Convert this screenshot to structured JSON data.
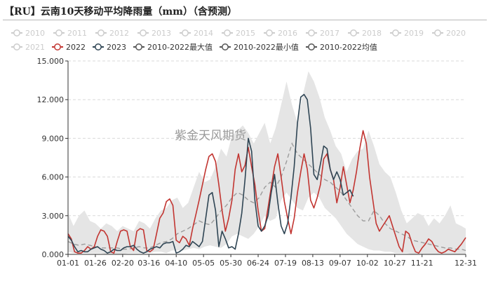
{
  "title": "【RU】云南10天移动平均降雨量（mm）（含预测）",
  "watermark": "紫金天风期货",
  "legend_rows": [
    [
      {
        "label": "2010",
        "state": "off",
        "color": "#cccccc"
      },
      {
        "label": "2011",
        "state": "off",
        "color": "#cccccc"
      },
      {
        "label": "2012",
        "state": "off",
        "color": "#cccccc"
      },
      {
        "label": "2013",
        "state": "off",
        "color": "#cccccc"
      },
      {
        "label": "2014",
        "state": "off",
        "color": "#cccccc"
      },
      {
        "label": "2015",
        "state": "off",
        "color": "#cccccc"
      },
      {
        "label": "2016",
        "state": "off",
        "color": "#cccccc"
      },
      {
        "label": "2017",
        "state": "off",
        "color": "#cccccc"
      },
      {
        "label": "2018",
        "state": "off",
        "color": "#cccccc"
      },
      {
        "label": "2019",
        "state": "off",
        "color": "#cccccc"
      },
      {
        "label": "2020",
        "state": "off",
        "color": "#cccccc"
      }
    ],
    [
      {
        "label": "2021",
        "state": "off",
        "color": "#cccccc"
      },
      {
        "label": "2022",
        "state": "on",
        "color": "#c23531"
      },
      {
        "label": "2023",
        "state": "on",
        "color": "#2f4554"
      },
      {
        "label": "2010-2022最大值",
        "state": "on",
        "color": "#555555"
      },
      {
        "label": "2010-2022最小值",
        "state": "on",
        "color": "#555555"
      },
      {
        "label": "2010-2022均值",
        "state": "on",
        "color": "#555555"
      }
    ]
  ],
  "colors": {
    "series_2022": "#c23531",
    "series_2023": "#2f4554",
    "mean_dashed": "#9c9c9c",
    "range_band": "#e5e5e5",
    "disabled": "#cccccc"
  },
  "chart_data": {
    "type": "line",
    "y_ticks": [
      "0.000",
      "3.000",
      "6.000",
      "9.000",
      "12.000",
      "15.000"
    ],
    "ylim": [
      0,
      15
    ],
    "x_ticks": [
      "01-01",
      "01-26",
      "02-20",
      "03-16",
      "04-10",
      "05-05",
      "05-30",
      "06-24",
      "07-19",
      "08-13",
      "09-07",
      "10-02",
      "10-27",
      "11-21",
      "12-31"
    ],
    "x_tick_days": [
      1,
      26,
      51,
      75,
      100,
      125,
      150,
      175,
      200,
      225,
      250,
      275,
      300,
      325,
      365
    ],
    "xlim": [
      1,
      365
    ],
    "grid": "horizontal-dashed",
    "series": [
      {
        "name": "2010-2022最大值",
        "role": "band-upper",
        "x": [
          1,
          6,
          11,
          16,
          21,
          26,
          31,
          36,
          41,
          46,
          51,
          56,
          61,
          66,
          71,
          76,
          81,
          86,
          91,
          96,
          101,
          106,
          111,
          116,
          121,
          126,
          131,
          136,
          141,
          146,
          151,
          156,
          161,
          166,
          171,
          176,
          181,
          186,
          191,
          196,
          201,
          206,
          211,
          216,
          221,
          226,
          231,
          236,
          241,
          246,
          251,
          256,
          261,
          266,
          271,
          276,
          281,
          286,
          291,
          296,
          301,
          306,
          311,
          316,
          321,
          326,
          331,
          336,
          341,
          346,
          351,
          356,
          361,
          365
        ],
        "values": [
          3.2,
          2.2,
          3.0,
          3.4,
          2.6,
          2.4,
          2.0,
          2.4,
          2.2,
          1.8,
          2.2,
          2.0,
          1.8,
          2.6,
          2.4,
          2.0,
          2.8,
          3.4,
          3.6,
          4.2,
          4.4,
          3.6,
          4.0,
          5.2,
          6.4,
          5.6,
          5.8,
          6.8,
          8.2,
          7.6,
          9.2,
          9.6,
          10.0,
          9.4,
          8.6,
          9.4,
          10.2,
          8.6,
          9.8,
          11.6,
          13.4,
          11.6,
          10.2,
          12.4,
          14.2,
          13.4,
          12.2,
          10.6,
          9.6,
          8.4,
          7.8,
          6.4,
          7.4,
          8.0,
          8.2,
          9.6,
          8.4,
          7.0,
          6.4,
          6.0,
          4.8,
          3.4,
          2.4,
          2.8,
          3.2,
          3.0,
          2.2,
          2.8,
          2.4,
          3.0,
          3.8,
          2.4,
          2.2,
          2.0
        ]
      },
      {
        "name": "2010-2022最小值",
        "role": "band-lower",
        "x": [
          1,
          6,
          11,
          16,
          21,
          26,
          31,
          36,
          41,
          46,
          51,
          56,
          61,
          66,
          71,
          76,
          81,
          86,
          91,
          96,
          101,
          106,
          111,
          116,
          121,
          126,
          131,
          136,
          141,
          146,
          151,
          156,
          161,
          166,
          171,
          176,
          181,
          186,
          191,
          196,
          201,
          206,
          211,
          216,
          221,
          226,
          231,
          236,
          241,
          246,
          251,
          256,
          261,
          266,
          271,
          276,
          281,
          286,
          291,
          296,
          301,
          306,
          311,
          316,
          321,
          326,
          331,
          336,
          341,
          346,
          351,
          356,
          361,
          365
        ],
        "values": [
          0.2,
          0.1,
          0.1,
          0.1,
          0.1,
          0.1,
          0.1,
          0.0,
          0.0,
          0.0,
          0.0,
          0.1,
          0.1,
          0.1,
          0.1,
          0.1,
          0.2,
          0.2,
          0.1,
          0.3,
          0.3,
          0.3,
          0.4,
          0.5,
          0.4,
          0.6,
          0.7,
          0.6,
          0.5,
          0.8,
          1.4,
          1.6,
          1.4,
          1.2,
          1.6,
          2.2,
          3.0,
          2.6,
          2.8,
          4.2,
          4.8,
          4.2,
          3.6,
          3.4,
          4.4,
          4.8,
          4.4,
          3.6,
          3.2,
          2.8,
          2.2,
          1.6,
          1.2,
          0.8,
          0.6,
          0.4,
          0.3,
          0.3,
          0.2,
          0.2,
          0.1,
          0.1,
          0.1,
          0.0,
          0.0,
          0.0,
          0.0,
          0.0,
          0.0,
          0.0,
          0.0,
          0.0,
          0.0,
          0.0
        ]
      },
      {
        "name": "2010-2022均值",
        "role": "mean",
        "x": [
          1,
          6,
          11,
          16,
          21,
          26,
          31,
          36,
          41,
          46,
          51,
          56,
          61,
          66,
          71,
          76,
          81,
          86,
          91,
          96,
          101,
          106,
          111,
          116,
          121,
          126,
          131,
          136,
          141,
          146,
          151,
          156,
          161,
          166,
          171,
          176,
          181,
          186,
          191,
          196,
          201,
          206,
          211,
          216,
          221,
          226,
          231,
          236,
          241,
          246,
          251,
          256,
          261,
          266,
          271,
          276,
          281,
          286,
          291,
          296,
          301,
          306,
          311,
          316,
          321,
          326,
          331,
          336,
          341,
          346,
          351,
          356,
          361,
          365
        ],
        "values": [
          1.0,
          0.8,
          0.7,
          0.8,
          0.7,
          0.6,
          0.5,
          0.5,
          0.5,
          0.5,
          0.4,
          0.4,
          0.5,
          0.6,
          0.5,
          0.5,
          0.7,
          0.9,
          1.0,
          1.2,
          1.6,
          1.8,
          2.0,
          2.3,
          2.6,
          2.4,
          2.3,
          2.8,
          3.4,
          3.8,
          4.4,
          4.8,
          4.6,
          4.2,
          4.0,
          4.4,
          5.2,
          5.6,
          5.2,
          6.0,
          7.2,
          8.6,
          7.8,
          7.4,
          7.0,
          6.6,
          6.2,
          5.8,
          5.6,
          5.2,
          4.8,
          4.2,
          3.6,
          3.0,
          2.6,
          2.6,
          3.4,
          3.0,
          2.4,
          2.0,
          1.8,
          1.6,
          1.4,
          1.1,
          1.0,
          0.9,
          0.8,
          0.7,
          0.6,
          0.5,
          0.5,
          0.4,
          0.4,
          0.3
        ]
      },
      {
        "name": "2022",
        "role": "line",
        "x": [
          1,
          4,
          7,
          10,
          13,
          16,
          19,
          22,
          25,
          28,
          31,
          34,
          37,
          40,
          43,
          46,
          49,
          52,
          55,
          58,
          61,
          64,
          67,
          70,
          73,
          76,
          79,
          82,
          85,
          88,
          91,
          94,
          97,
          100,
          103,
          106,
          109,
          112,
          115,
          118,
          121,
          124,
          127,
          130,
          133,
          136,
          139,
          142,
          145,
          148,
          151,
          154,
          157,
          160,
          163,
          166,
          169,
          172,
          175,
          178,
          181,
          184,
          187,
          190,
          193,
          196,
          199,
          202,
          205,
          208,
          211,
          214,
          217,
          220,
          223,
          226,
          229,
          232,
          235,
          238,
          241,
          244,
          247,
          250,
          253,
          256,
          259,
          262,
          265,
          268,
          271,
          274,
          277,
          280,
          283,
          286,
          289,
          292,
          295,
          298,
          301,
          304,
          307,
          310,
          313,
          316,
          319,
          322,
          325,
          328,
          331,
          334,
          337,
          340,
          343,
          346,
          349,
          352,
          355,
          358,
          361,
          365
        ],
        "values": [
          1.6,
          1.2,
          0.2,
          0.1,
          0.1,
          0.3,
          0.6,
          0.4,
          0.6,
          1.4,
          1.9,
          1.8,
          1.4,
          0.2,
          0.1,
          1.0,
          1.8,
          1.9,
          1.8,
          0.6,
          0.3,
          1.8,
          2.0,
          1.9,
          0.3,
          0.2,
          0.4,
          1.6,
          2.8,
          3.2,
          4.1,
          4.3,
          3.8,
          1.1,
          0.9,
          1.4,
          1.2,
          0.7,
          2.0,
          3.1,
          4.2,
          5.4,
          6.6,
          7.6,
          7.8,
          7.2,
          5.4,
          3.4,
          1.8,
          2.8,
          4.2,
          6.6,
          7.8,
          6.4,
          6.9,
          8.3,
          6.8,
          5.4,
          3.4,
          1.8,
          2.0,
          3.6,
          5.2,
          6.8,
          7.8,
          6.0,
          4.1,
          2.8,
          1.6,
          2.8,
          4.8,
          6.4,
          7.8,
          6.6,
          4.2,
          3.6,
          4.4,
          5.4,
          7.4,
          7.8,
          6.6,
          5.8,
          4.0,
          5.2,
          6.8,
          5.4,
          4.0,
          5.0,
          6.4,
          8.2,
          9.6,
          8.6,
          6.0,
          4.2,
          2.4,
          1.8,
          2.2,
          2.6,
          3.0,
          2.2,
          1.4,
          0.6,
          0.2,
          1.8,
          1.6,
          0.8,
          0.2,
          0.1,
          0.5,
          0.8,
          1.2,
          1.0,
          0.5,
          0.2,
          0.1,
          0.2,
          0.4,
          0.3,
          0.2,
          0.5,
          0.8,
          1.3
        ]
      },
      {
        "name": "2023",
        "role": "line",
        "x": [
          1,
          4,
          7,
          10,
          13,
          16,
          19,
          22,
          25,
          28,
          31,
          34,
          37,
          40,
          43,
          46,
          49,
          52,
          55,
          58,
          61,
          64,
          67,
          70,
          73,
          76,
          79,
          82,
          85,
          88,
          91,
          94,
          97,
          100,
          103,
          106,
          109,
          112,
          115,
          118,
          121,
          124,
          127,
          130,
          133,
          136,
          139,
          142,
          145,
          148,
          151,
          154,
          157,
          160,
          163,
          166,
          169,
          172,
          175,
          178,
          181,
          184,
          187,
          190,
          193,
          196,
          199,
          202,
          205,
          208,
          211,
          214,
          217,
          220,
          223,
          226,
          229,
          232,
          235,
          238,
          241,
          244,
          247,
          250,
          253,
          256,
          259,
          262
        ],
        "values": [
          1.4,
          1.1,
          0.6,
          0.2,
          0.3,
          0.2,
          0.2,
          0.4,
          0.5,
          0.6,
          0.4,
          0.3,
          0.1,
          0.2,
          0.4,
          0.3,
          0.3,
          0.5,
          0.6,
          0.6,
          0.7,
          0.4,
          0.2,
          0.1,
          0.2,
          0.4,
          0.5,
          0.6,
          0.5,
          0.8,
          0.9,
          0.9,
          1.0,
          0.1,
          0.2,
          0.4,
          0.7,
          0.6,
          1.0,
          0.8,
          0.6,
          1.0,
          2.8,
          4.6,
          4.8,
          3.4,
          0.6,
          1.8,
          1.2,
          0.5,
          0.6,
          0.4,
          1.6,
          3.2,
          5.8,
          9.0,
          8.0,
          4.2,
          2.2,
          1.8,
          2.2,
          3.0,
          4.8,
          6.2,
          4.0,
          2.2,
          1.6,
          2.4,
          4.4,
          6.8,
          10.2,
          12.2,
          12.4,
          12.0,
          9.8,
          6.2,
          5.8,
          7.0,
          8.4,
          8.2,
          6.6,
          5.8,
          6.4,
          5.8,
          4.6,
          4.8,
          5.0,
          4.5
        ]
      }
    ]
  }
}
